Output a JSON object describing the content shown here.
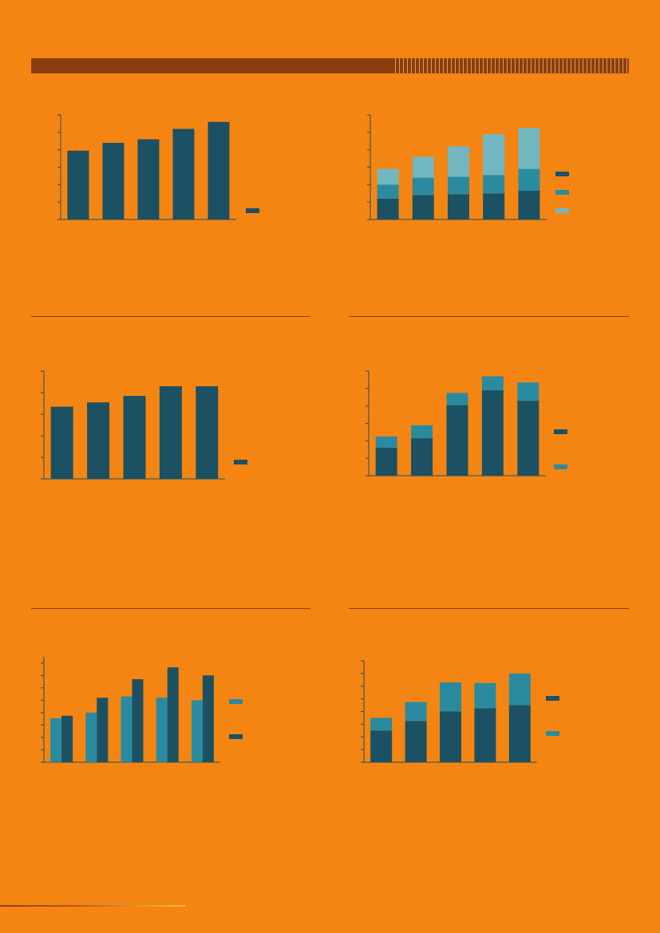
{
  "colors": {
    "background": "#f58512",
    "dark_teal": "#1b5163",
    "mid_teal": "#2a8ba0",
    "light_teal": "#72b7c0",
    "axis": "#1b5163",
    "header_bar": "#8a3e0e"
  },
  "chart_data": [
    {
      "type": "bar",
      "title": "",
      "categories": [
        "",
        "",
        "",
        "",
        ""
      ],
      "series": [
        {
          "color": "#1b5163",
          "values": [
            3.95,
            4.4,
            4.6,
            5.2,
            5.6
          ]
        }
      ],
      "ylim": [
        0,
        6
      ],
      "yticks": [
        0,
        1,
        2,
        3,
        4,
        5,
        6
      ],
      "grid": false,
      "legend_position": "right-bottom"
    },
    {
      "type": "bar",
      "stacked": true,
      "title": "",
      "categories": [
        "",
        "",
        "",
        "",
        ""
      ],
      "series": [
        {
          "color": "#1b5163",
          "values": [
            1.2,
            1.4,
            1.45,
            1.5,
            1.65
          ]
        },
        {
          "color": "#2a8ba0",
          "values": [
            0.8,
            1.0,
            1.0,
            1.05,
            1.25
          ]
        },
        {
          "color": "#72b7c0",
          "values": [
            0.9,
            1.2,
            1.75,
            2.35,
            2.35
          ]
        }
      ],
      "ylim": [
        0,
        6
      ],
      "yticks": [
        0,
        1,
        2,
        3,
        4,
        5,
        6
      ],
      "grid": false,
      "legend_position": "right"
    },
    {
      "type": "bar",
      "title": "",
      "categories": [
        "",
        "",
        "",
        "",
        ""
      ],
      "series": [
        {
          "color": "#1b5163",
          "values": [
            3.35,
            3.55,
            3.85,
            4.3,
            4.3
          ]
        }
      ],
      "ylim": [
        0,
        5
      ],
      "yticks": [
        0,
        1,
        2,
        3,
        4,
        5
      ],
      "grid": false,
      "legend_position": "right-bottom"
    },
    {
      "type": "bar",
      "stacked": true,
      "title": "",
      "categories": [
        "",
        "",
        "",
        "",
        ""
      ],
      "series": [
        {
          "color": "#1b5163",
          "values": [
            1.6,
            2.15,
            4.05,
            4.9,
            4.3
          ]
        },
        {
          "color": "#2a8ba0",
          "values": [
            0.65,
            0.75,
            0.7,
            0.8,
            1.05
          ]
        }
      ],
      "ylim": [
        0,
        6
      ],
      "yticks": [
        0,
        1,
        2,
        3,
        4,
        5,
        6
      ],
      "grid": false,
      "legend_position": "right"
    },
    {
      "type": "bar",
      "grouped": true,
      "title": "",
      "categories": [
        "",
        "",
        "",
        "",
        ""
      ],
      "series": [
        {
          "color": "#2a8ba0",
          "values": [
            3.55,
            4.0,
            5.3,
            5.2,
            5.0
          ]
        },
        {
          "color": "#1b5163",
          "values": [
            3.75,
            5.2,
            6.7,
            7.65,
            7.0
          ]
        }
      ],
      "ylim": [
        0,
        8.5
      ],
      "yticks": [
        0,
        1,
        2,
        3,
        4,
        5,
        6,
        7,
        8
      ],
      "grid": false,
      "legend_position": "right"
    },
    {
      "type": "bar",
      "stacked": true,
      "title": "",
      "categories": [
        "",
        "",
        "",
        "",
        ""
      ],
      "series": [
        {
          "color": "#1b5163",
          "values": [
            2.5,
            3.25,
            4.0,
            4.25,
            4.5
          ]
        },
        {
          "color": "#2a8ba0",
          "values": [
            1.0,
            1.5,
            2.3,
            2.0,
            2.5
          ]
        }
      ],
      "ylim": [
        0,
        8
      ],
      "yticks": [
        0,
        1,
        2,
        3,
        4,
        5,
        6,
        7,
        8
      ],
      "grid": false,
      "legend_position": "right"
    }
  ]
}
